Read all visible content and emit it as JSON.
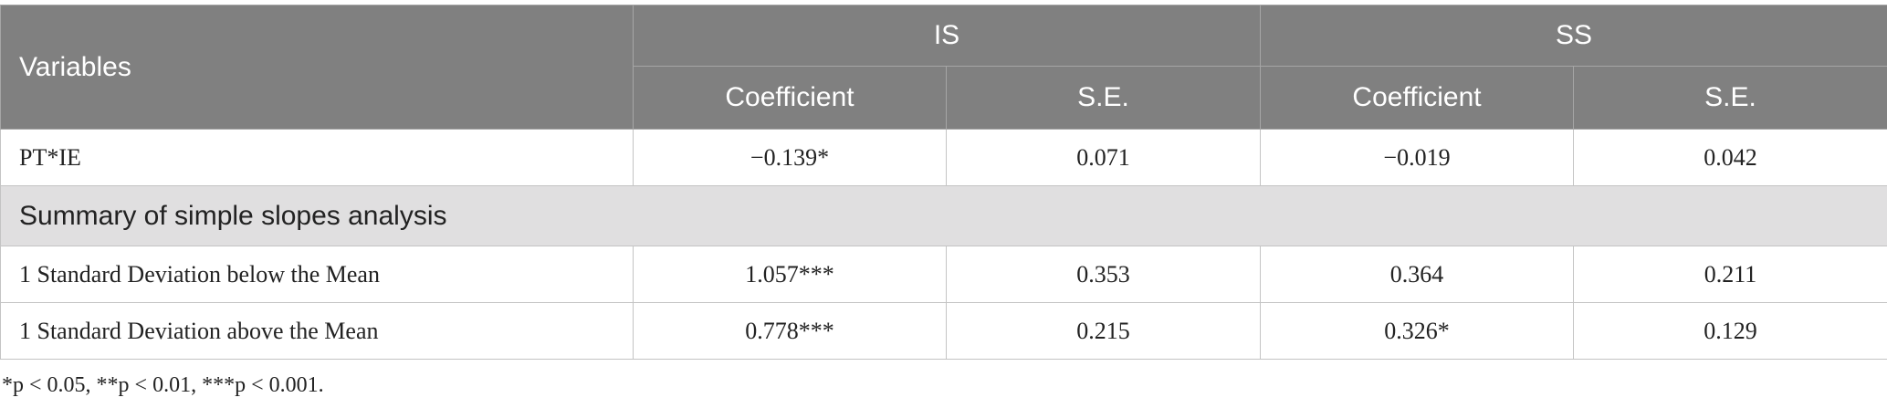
{
  "table": {
    "header": {
      "variables": "Variables",
      "groups": [
        "IS",
        "SS"
      ],
      "subheaders": [
        "Coefficient",
        "S.E.",
        "Coefficient",
        "S.E."
      ]
    },
    "rows": [
      [
        "PT*IE",
        "−0.139*",
        "0.071",
        "−0.019",
        "0.042"
      ]
    ],
    "section": "Summary of simple slopes analysis",
    "section_rows": [
      [
        "1 Standard Deviation below the Mean",
        "1.057***",
        "0.353",
        "0.364",
        "0.211"
      ],
      [
        "1 Standard Deviation above the Mean",
        "0.778***",
        "0.215",
        "0.326*",
        "0.129"
      ]
    ]
  },
  "footnote": "*p < 0.05, **p < 0.01, ***p < 0.001."
}
